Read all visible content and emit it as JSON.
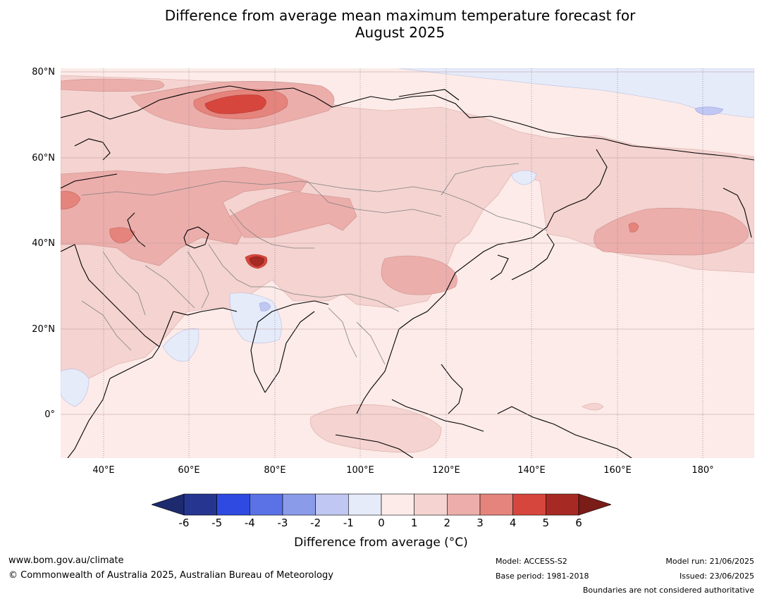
{
  "title": {
    "line1": "Difference from average mean maximum temperature forecast for",
    "line2": "August 2025"
  },
  "map": {
    "lat_labels": [
      "80°N",
      "60°N",
      "40°N",
      "20°N",
      "0°"
    ],
    "lon_labels": [
      "40°E",
      "60°E",
      "80°E",
      "100°E",
      "120°E",
      "140°E",
      "160°E",
      "180°"
    ],
    "anomaly_colors": {
      "plus_0_1": "#fcebe8",
      "plus_1_2": "#f4d3d0",
      "plus_2_3": "#ecaeab",
      "plus_3_4": "#e5847c",
      "plus_4_5": "#d7463d",
      "plus_5_6": "#a62a23",
      "minus_0_1": "#e6ebfa",
      "minus_1_2": "#c0c7f2",
      "ocean_base": "#fcebe8"
    }
  },
  "colorbar": {
    "ticks": [
      "-6",
      "-5",
      "-4",
      "-3",
      "-2",
      "-1",
      "0",
      "1",
      "2",
      "3",
      "4",
      "5",
      "6"
    ],
    "colors": [
      "#263590",
      "#2f4ae0",
      "#5a72e6",
      "#8a9be9",
      "#c0c7f2",
      "#e6ebfa",
      "#fcebe8",
      "#f4d3d0",
      "#ecaeab",
      "#e5847c",
      "#d7463d",
      "#a62a23"
    ],
    "low_extend_color": "#1e2a6e",
    "high_extend_color": "#7a1c18",
    "label": "Difference from average (°C)"
  },
  "footer": {
    "website": "www.bom.gov.au/climate",
    "copyright": "© Commonwealth of Australia 2025, Australian Bureau of Meteorology",
    "model": "Model: ACCESS-S2",
    "base_period": "Base period: 1981-2018",
    "model_run": "Model run: 21/06/2025",
    "issued": "Issued: 23/06/2025",
    "disclaimer": "Boundaries are not considered authoritative"
  }
}
